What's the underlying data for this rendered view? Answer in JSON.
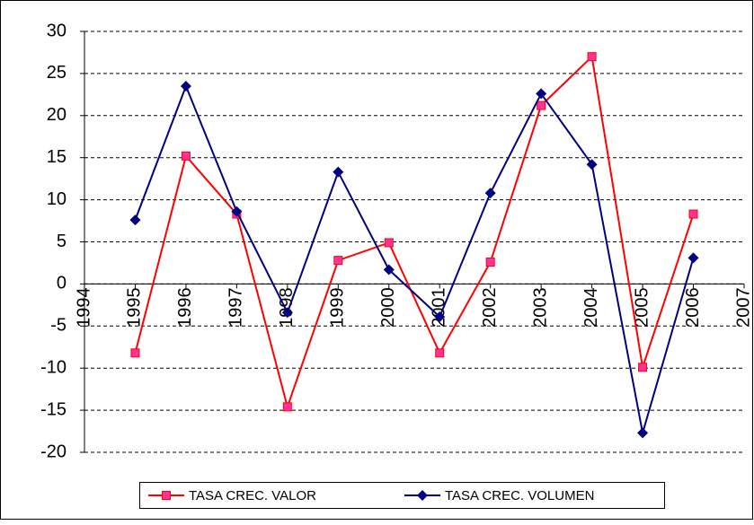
{
  "chart_data": {
    "type": "line",
    "x": [
      1995,
      1996,
      1997,
      1998,
      1999,
      2000,
      2001,
      2002,
      2003,
      2004,
      2005,
      2006
    ],
    "series": [
      {
        "name": "TASA CREC. VALOR",
        "color": "#ff0000",
        "marker_color": "#ff3399",
        "marker": "square",
        "values": [
          -8.2,
          15.2,
          8.3,
          -14.6,
          2.8,
          4.9,
          -8.2,
          2.6,
          21.2,
          27,
          -9.9,
          8.3
        ]
      },
      {
        "name": "TASA CREC. VOLUMEN",
        "color": "#000080",
        "marker_color": "#000080",
        "marker": "diamond",
        "values": [
          7.6,
          23.5,
          8.6,
          -3.4,
          13.3,
          1.7,
          -3.9,
          10.8,
          22.6,
          14.2,
          -17.7,
          3.1
        ]
      }
    ],
    "xlim": [
      1994,
      2007
    ],
    "xticks": [
      1994,
      1995,
      1996,
      1997,
      1998,
      1999,
      2000,
      2001,
      2002,
      2003,
      2004,
      2005,
      2006,
      2007
    ],
    "ylim": [
      -20,
      30
    ],
    "yticks": [
      -20,
      -15,
      -10,
      -5,
      0,
      5,
      10,
      15,
      20,
      25,
      30
    ],
    "grid": true,
    "legend": "bottom"
  }
}
